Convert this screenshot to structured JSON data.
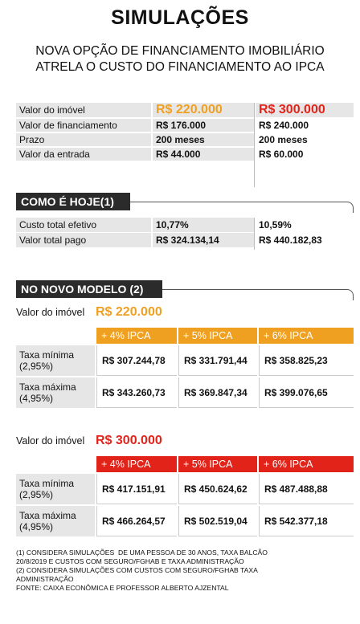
{
  "title": "SIMULAÇÕES",
  "subtitle": [
    "NOVA OPÇÃO DE FINANCIAMENTO IMOBILIÁRIO",
    "ATRELA O CUSTO DO FINANCIAMENTO AO IPCA"
  ],
  "summary": {
    "header": [
      "Valor do imóvel",
      "R$ 220.000",
      "R$ 300.000"
    ],
    "rows": [
      [
        "Valor de financiamento",
        "R$ 176.000",
        "R$ 240.000"
      ],
      [
        "Prazo",
        "200 meses",
        "200 meses"
      ],
      [
        "Valor da entrada",
        "R$ 44.000",
        "R$ 60.000"
      ]
    ]
  },
  "today": {
    "title": "COMO É HOJE(1)",
    "rows": [
      [
        "Custo total efetivo",
        "10,77%",
        "10,59%"
      ],
      [
        "Valor total pago",
        "R$ 324.134,14",
        "R$ 440.182,83"
      ]
    ]
  },
  "new_model": {
    "title": "NO NOVO MODELO (2)",
    "tables": [
      {
        "label": "Valor do imóvel",
        "value": "R$ 220.000",
        "columns": [
          "+ 4% IPCA",
          "+ 5% IPCA",
          "+ 6% IPCA"
        ],
        "rows": [
          {
            "name": [
              "Taxa mínima",
              "(2,95%)"
            ],
            "values": [
              "R$ 307.244,78",
              "R$ 331.791,44",
              "R$ 358.825,23"
            ]
          },
          {
            "name": [
              "Taxa máxima",
              "(4,95%)"
            ],
            "values": [
              "R$ 343.260,73",
              "R$ 369.847,34",
              "R$ 399.076,65"
            ]
          }
        ]
      },
      {
        "label": "Valor do imóvel",
        "value": "R$ 300.000",
        "columns": [
          "+ 4% IPCA",
          "+ 5% IPCA",
          "+ 6% IPCA"
        ],
        "rows": [
          {
            "name": [
              "Taxa mínima",
              "(2,95%)"
            ],
            "values": [
              "R$ 417.151,91",
              "R$ 450.624,62",
              "R$ 487.488,88"
            ]
          },
          {
            "name": [
              "Taxa máxima",
              "(4,95%)"
            ],
            "values": [
              "R$ 466.264,57",
              "R$ 502.519,04",
              "R$ 542.377,18"
            ]
          }
        ]
      }
    ]
  },
  "notes": [
    "(1) CONSIDERA SIMULAÇÕES  DE UMA PESSOA DE 30 ANOS, TAXA BALCÃO",
    "20/8/2019 E CUSTOS COM SEGURO/FGHAB E TAXA ADMINISTRAÇÃO",
    "(2) CONSIDERA SIMULAÇÕES COM CUSTOS COM SEGURO/FGHAB TAXA",
    "ADMINISTRAÇÃO",
    "FONTE: CAIXA ECONÔMICA E PROFESSOR ALBERTO AJZENTAL"
  ]
}
